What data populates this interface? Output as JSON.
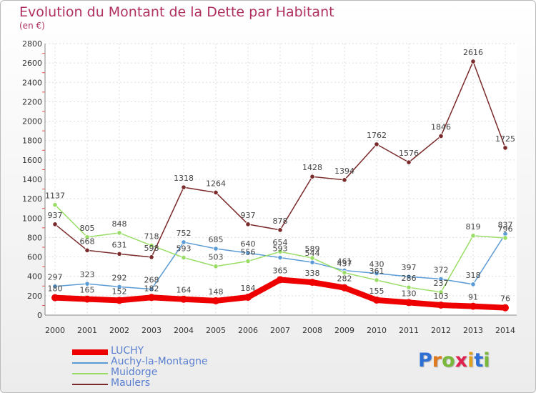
{
  "header": {
    "title": "Evolution du Montant de la Dette par Habitant",
    "subtitle": "(en €)"
  },
  "logo": {
    "text": "Proxiti",
    "letter_colors": [
      "#2e6fd6",
      "#e07a1f",
      "#7ab83b",
      "#e0204f",
      "#e0a020",
      "#2e6fd6",
      "#7ab83b"
    ]
  },
  "chart_data": {
    "type": "line",
    "title": "Evolution du Montant de la Dette par Habitant",
    "subtitle": "(en €)",
    "xlabel": "",
    "ylabel": "",
    "ylim": [
      0,
      2800
    ],
    "ytick_step": 200,
    "grid": true,
    "legend_position": "bottom-left",
    "x": [
      "2000",
      "2001",
      "2002",
      "2003",
      "2004",
      "2005",
      "2006",
      "2007",
      "2008",
      "2009",
      "2010",
      "2011",
      "2012",
      "2013",
      "2014"
    ],
    "series": [
      {
        "name": "LUCHY",
        "color": "#ee0000",
        "width": 8,
        "values": [
          180,
          165,
          152,
          182,
          164,
          148,
          184,
          365,
          338,
          282,
          155,
          130,
          103,
          91,
          76
        ]
      },
      {
        "name": "Auchy-la-Montagne",
        "color": "#5b9bd5",
        "width": 1.5,
        "values": [
          297,
          323,
          292,
          268,
          752,
          685,
          640,
          593,
          544,
          461,
          430,
          397,
          372,
          318,
          837
        ]
      },
      {
        "name": "Muidorge",
        "color": "#99dd66",
        "width": 1.5,
        "values": [
          1137,
          805,
          848,
          718,
          593,
          503,
          556,
          654,
          589,
          437,
          361,
          286,
          237,
          819,
          796
        ]
      },
      {
        "name": "Maulers",
        "color": "#7a2a2a",
        "width": 1.5,
        "values": [
          937,
          668,
          631,
          598,
          1318,
          1264,
          937,
          878,
          1428,
          1394,
          1762,
          1576,
          1846,
          2616,
          1725
        ]
      }
    ]
  }
}
